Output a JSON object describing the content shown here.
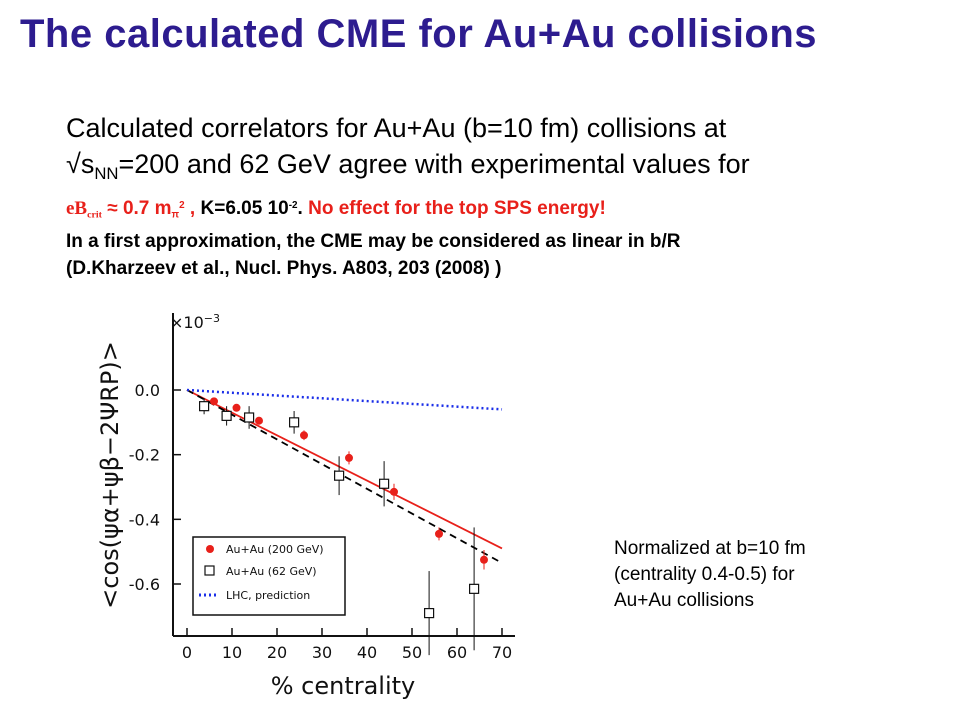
{
  "header": {
    "title": "The calculated CME for Au+Au collisions"
  },
  "text": {
    "line1": "Calculated correlators for Au+Au (b=10 fm) collisions at",
    "sqrt": "√",
    "s": "s",
    "nn": "NN",
    "line2_rest": "=200 and  62 GeV agree with experimental  values for",
    "eB": "eB",
    "crit": "crit",
    "approx": " ≈ 0.7 m",
    "pi": "π",
    "two": "2",
    "comma": " ,   ",
    "K": "K=6.05 10",
    "minus2": "-2",
    "dot": ". ",
    "noeffect": "No effect for the top SPS energy!",
    "line4": "In a first  approximation, the CME may be considered as linear in b/R",
    "ref_a": "(D.Kharzeev et al., Nucl. Phys. ",
    "ref_b": "A803",
    "ref_c": ", 203 (2008) )"
  },
  "note": {
    "line1": "Normalized at b=10 fm",
    "line2": "(centrality 0.4-0.5) for",
    "line3": "Au+Au collisions"
  },
  "chart_data": {
    "type": "scatter",
    "xlabel": "% centrality",
    "ylabel": "<cos(ψα+ψβ−2ΨRP)>",
    "scale_label": "×10",
    "scale_exp": "−3",
    "xlim": [
      0,
      70
    ],
    "ylim": [
      -0.7,
      0.05
    ],
    "x_ticks": [
      "0",
      "10",
      "20",
      "30",
      "40",
      "50",
      "60",
      "70"
    ],
    "y_ticks": [
      "0.0",
      "-0.2",
      "-0.4",
      "-0.6"
    ],
    "legend": [
      "Au+Au (200 GeV)",
      "Au+Au (62 GeV)",
      "LHC, prediction"
    ],
    "colors": {
      "au200": "#e8201a",
      "au62": "#000000",
      "lhc": "#1a2ee8",
      "fit200": "#e8201a",
      "fit62": "#000000"
    },
    "series": [
      {
        "name": "Au+Au (200 GeV)",
        "marker": "filled-circle",
        "x": [
          5,
          10,
          15,
          25,
          35,
          45,
          55,
          65
        ],
        "y": [
          -0.035,
          -0.055,
          -0.095,
          -0.14,
          -0.21,
          -0.315,
          -0.445,
          -0.525
        ],
        "err": [
          0.01,
          0.01,
          0.012,
          0.015,
          0.02,
          0.025,
          0.02,
          0.03
        ]
      },
      {
        "name": "Au+Au (62 GeV)",
        "marker": "open-square",
        "x": [
          5,
          10,
          15,
          25,
          35,
          45,
          55,
          65
        ],
        "y": [
          -0.05,
          -0.08,
          -0.085,
          -0.1,
          -0.265,
          -0.29,
          -0.69,
          -0.615
        ],
        "err": [
          0.025,
          0.03,
          0.035,
          0.035,
          0.06,
          0.07,
          0.13,
          0.19
        ]
      }
    ],
    "lines": [
      {
        "name": "fit-200",
        "style": "solid",
        "color": "red",
        "x": [
          0,
          70
        ],
        "y": [
          0.0,
          -0.49
        ]
      },
      {
        "name": "fit-62",
        "style": "dashed",
        "color": "black",
        "x": [
          0,
          70
        ],
        "y": [
          0.0,
          -0.535
        ]
      },
      {
        "name": "LHC, prediction",
        "style": "dotted",
        "color": "blue",
        "x": [
          0,
          70
        ],
        "y": [
          0.0,
          -0.06
        ]
      }
    ]
  }
}
